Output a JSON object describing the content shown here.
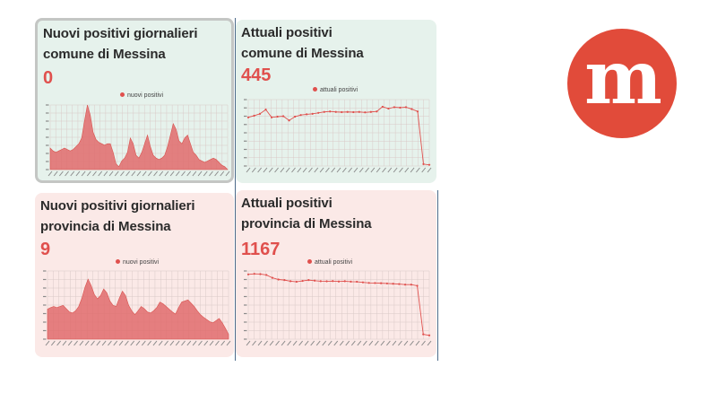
{
  "cards": {
    "new_comune": {
      "title_line1": "Nuovi positivi giornalieri",
      "title_line2": "comune di Messina",
      "value": "0",
      "legend": "nuovi positivi",
      "y_ticks": [
        "",
        "",
        "",
        "",
        "",
        "",
        "",
        ""
      ]
    },
    "current_comune": {
      "title_line1": "Attuali positivi",
      "title_line2": "comune di Messina",
      "value": "445",
      "legend": "attuali positivi"
    },
    "new_provincia": {
      "title_line1": "Nuovi positivi giornalieri",
      "title_line2": "provincia di Messina",
      "value": "9",
      "legend": "nuovi positivi"
    },
    "current_provincia": {
      "title_line1": "Attuali positivi",
      "title_line2": "provincia di Messina",
      "value": "1167",
      "legend": "attuali positivi"
    }
  },
  "logo": {
    "letter": "m",
    "color": "#e14b3a"
  },
  "colors": {
    "accent": "#e0504d",
    "green_card": "#e6f2ec",
    "pink_card": "#fbe9e7",
    "divider": "#4d6b8a"
  },
  "chart_data": [
    {
      "type": "area",
      "legend": "nuovi positivi",
      "ylim": [
        0,
        45
      ],
      "grid": true,
      "legend_position": "top-center",
      "values": [
        15,
        13,
        12,
        13,
        14,
        15,
        14,
        13,
        14,
        16,
        18,
        22,
        34,
        45,
        38,
        26,
        21,
        19,
        18,
        17,
        18,
        18,
        12,
        4,
        2,
        6,
        8,
        12,
        22,
        18,
        10,
        8,
        12,
        18,
        24,
        16,
        10,
        8,
        7,
        8,
        10,
        16,
        24,
        32,
        28,
        20,
        18,
        22,
        24,
        18,
        12,
        10,
        7,
        6,
        5,
        6,
        7,
        8,
        7,
        5,
        3,
        2,
        0
      ]
    },
    {
      "type": "line",
      "legend": "attuali positivi",
      "ylim": [
        440,
        720
      ],
      "grid": true,
      "legend_position": "top-center",
      "values": [
        645,
        652,
        660,
        678,
        645,
        648,
        650,
        632,
        648,
        655,
        658,
        660,
        664,
        668,
        670,
        668,
        667,
        668,
        667,
        668,
        666,
        668,
        670,
        690,
        682,
        688,
        686,
        688,
        680,
        670,
        448,
        445
      ]
    },
    {
      "type": "area",
      "legend": "nuovi positivi",
      "ylim": [
        0,
        125
      ],
      "grid": true,
      "legend_position": "top-center",
      "values": [
        55,
        58,
        60,
        58,
        60,
        62,
        56,
        50,
        48,
        52,
        60,
        75,
        95,
        110,
        98,
        82,
        74,
        80,
        92,
        85,
        70,
        62,
        60,
        75,
        88,
        80,
        62,
        52,
        45,
        52,
        60,
        56,
        50,
        48,
        52,
        58,
        68,
        65,
        60,
        55,
        50,
        46,
        58,
        68,
        70,
        72,
        66,
        60,
        52,
        45,
        40,
        36,
        32,
        30,
        34,
        38,
        30,
        20,
        9
      ]
    },
    {
      "type": "line",
      "legend": "attuali positivi",
      "ylim": [
        1100,
        2300
      ],
      "grid": true,
      "legend_position": "top-center",
      "values": [
        2240,
        2250,
        2245,
        2230,
        2180,
        2150,
        2140,
        2120,
        2110,
        2125,
        2140,
        2130,
        2120,
        2118,
        2122,
        2115,
        2120,
        2112,
        2110,
        2100,
        2090,
        2088,
        2085,
        2080,
        2075,
        2070,
        2060,
        2060,
        2040,
        1185,
        1167
      ]
    }
  ]
}
